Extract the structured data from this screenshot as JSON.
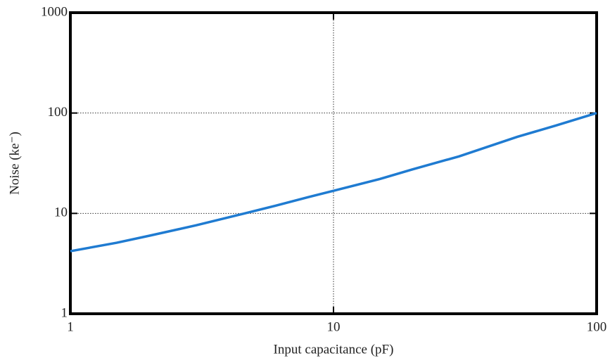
{
  "chart_data": {
    "type": "line",
    "x_label": "Input capacitance (pF)",
    "y_label": "Noise (ke⁻)",
    "x": [
      1,
      1.5,
      2,
      3,
      4.6,
      6,
      8,
      10,
      15,
      20,
      30,
      50,
      70,
      100
    ],
    "series": [
      {
        "name": "Noise",
        "color": "#1f7bd1",
        "values": [
          4.2,
          5.1,
          6.0,
          7.6,
          10,
          11.9,
          14.5,
          16.8,
          22,
          27.5,
          37,
          58,
          75,
          100
        ]
      }
    ],
    "xlim": [
      1,
      100
    ],
    "xticks": [
      1,
      10,
      100
    ],
    "ylim": [
      1,
      1000
    ],
    "yticks": [
      1,
      10,
      100,
      1000
    ],
    "log_x": true,
    "log_y": true,
    "grid": true
  }
}
